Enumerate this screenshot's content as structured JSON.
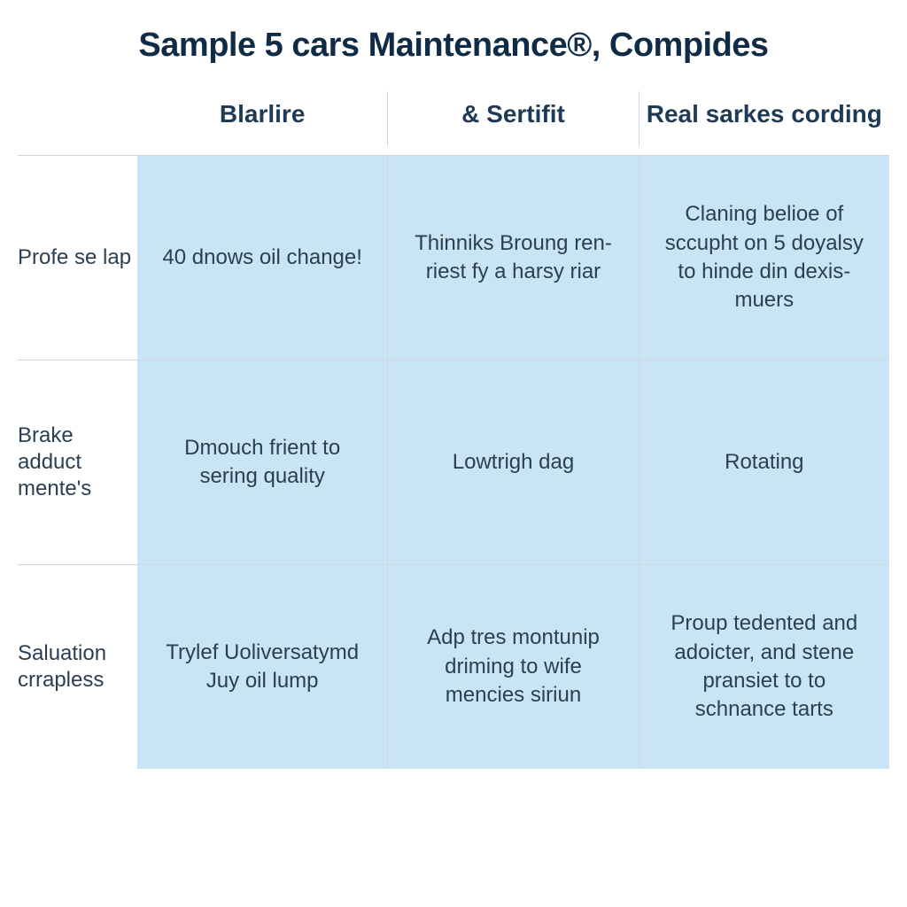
{
  "title": "Sample 5 cars Maintenance®, Compides",
  "colors": {
    "title_color": "#0f2b46",
    "header_color": "#1e3a56",
    "row_label_color": "#2a3f54",
    "cell_text_color": "#2a3f54",
    "cell_background": "#c9e4f5",
    "border_color": "#cfd8dc",
    "page_background": "#ffffff"
  },
  "typography": {
    "title_fontsize": 38,
    "header_fontsize": 28,
    "row_label_fontsize": 24,
    "cell_fontsize": 24
  },
  "table": {
    "columns": [
      {
        "label": "Blarlire"
      },
      {
        "label": "& Sertifit"
      },
      {
        "label": "Real sarkes cording"
      }
    ],
    "rows": [
      {
        "label": "Profe se lap",
        "cells": [
          "40 dnows oil change!",
          "Thinniks\nBroung ren-riest fy a harsy riar",
          "Claning belioe of sccupht on 5 doyalsy to hinde din dexis-muers"
        ]
      },
      {
        "label": "Brake adduct mente's",
        "cells": [
          "Dmouch frient to sering quality",
          "Lowtrigh dag",
          "Rotating"
        ]
      },
      {
        "label": "Saluation crrapless",
        "cells": [
          "Trylef Uoliversatymd Juy oil lump",
          "Adp tres montunip driming to wife mencies siriun",
          "Proup tedented and adoicter, and stene pransiet to to schnance tarts"
        ]
      }
    ]
  }
}
